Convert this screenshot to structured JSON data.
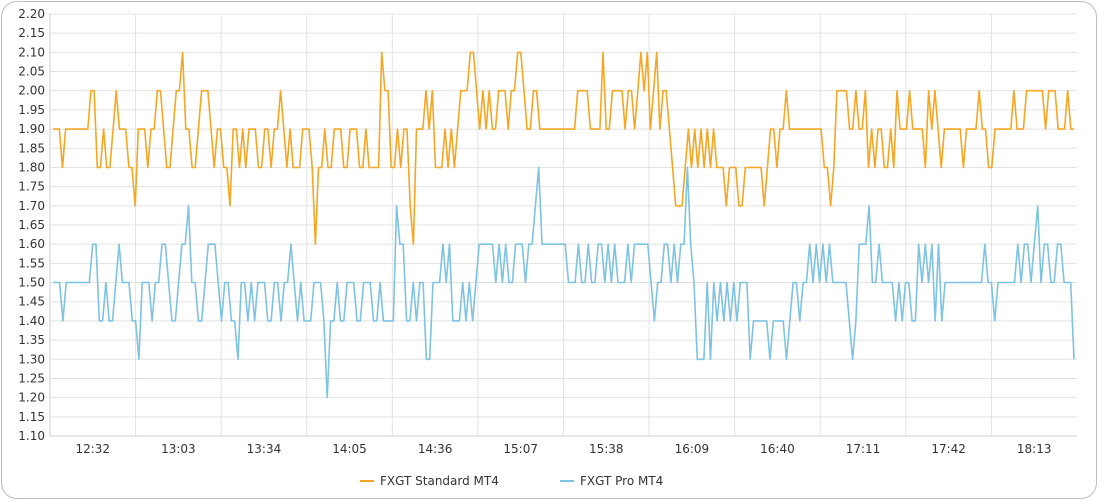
{
  "chart_data": {
    "type": "line",
    "title": "",
    "xlabel": "",
    "ylabel": "",
    "ylim": [
      1.1,
      2.2
    ],
    "y_ticks": [
      "2.20",
      "2.15",
      "2.10",
      "2.05",
      "2.00",
      "1.95",
      "1.90",
      "1.85",
      "1.80",
      "1.75",
      "1.70",
      "1.65",
      "1.60",
      "1.55",
      "1.50",
      "1.45",
      "1.40",
      "1.35",
      "1.30",
      "1.25",
      "1.20",
      "1.15",
      "1.10"
    ],
    "x_ticks": [
      "12:32",
      "13:03",
      "13:34",
      "14:05",
      "14:36",
      "15:07",
      "15:38",
      "16:09",
      "16:40",
      "17:11",
      "17:42",
      "18:13"
    ],
    "grid": true,
    "legend_position": "bottom",
    "series": [
      {
        "name": "FXGT Standard MT4",
        "color": "#f5a623",
        "values": [
          1.9,
          1.9,
          1.9,
          1.8,
          1.9,
          1.9,
          1.9,
          1.9,
          1.9,
          1.9,
          1.9,
          1.9,
          2.0,
          2.0,
          1.8,
          1.8,
          1.9,
          1.8,
          1.8,
          1.9,
          2.0,
          1.9,
          1.9,
          1.9,
          1.8,
          1.8,
          1.7,
          1.9,
          1.9,
          1.9,
          1.8,
          1.9,
          1.9,
          2.0,
          2.0,
          1.9,
          1.8,
          1.8,
          1.9,
          2.0,
          2.0,
          2.1,
          1.9,
          1.9,
          1.8,
          1.8,
          1.9,
          2.0,
          2.0,
          2.0,
          1.9,
          1.8,
          1.9,
          1.9,
          1.8,
          1.8,
          1.7,
          1.9,
          1.9,
          1.8,
          1.9,
          1.8,
          1.9,
          1.9,
          1.9,
          1.8,
          1.8,
          1.9,
          1.9,
          1.8,
          1.9,
          1.9,
          2.0,
          1.9,
          1.8,
          1.9,
          1.8,
          1.8,
          1.8,
          1.9,
          1.9,
          1.9,
          1.8,
          1.6,
          1.8,
          1.8,
          1.9,
          1.8,
          1.8,
          1.9,
          1.9,
          1.9,
          1.8,
          1.8,
          1.9,
          1.9,
          1.9,
          1.8,
          1.8,
          1.9,
          1.8,
          1.8,
          1.8,
          1.8,
          2.1,
          2.0,
          2.0,
          1.8,
          1.8,
          1.9,
          1.8,
          1.9,
          1.9,
          1.7,
          1.6,
          1.9,
          1.9,
          1.9,
          2.0,
          1.9,
          2.0,
          1.8,
          1.8,
          1.8,
          1.9,
          1.8,
          1.9,
          1.8,
          1.9,
          2.0,
          2.0,
          2.0,
          2.1,
          2.1,
          2.0,
          1.9,
          2.0,
          1.9,
          2.0,
          1.9,
          1.9,
          2.0,
          2.0,
          2.0,
          1.9,
          2.0,
          2.0,
          2.1,
          2.1,
          2.0,
          1.9,
          1.9,
          2.0,
          2.0,
          1.9,
          1.9,
          1.9,
          1.9,
          1.9,
          1.9,
          1.9,
          1.9,
          1.9,
          1.9,
          1.9,
          1.9,
          2.0,
          2.0,
          2.0,
          2.0,
          1.9,
          1.9,
          1.9,
          1.9,
          2.1,
          1.9,
          1.9,
          2.0,
          2.0,
          2.0,
          2.0,
          1.9,
          2.0,
          2.0,
          1.9,
          2.0,
          2.1,
          2.0,
          2.1,
          1.9,
          2.0,
          2.1,
          1.9,
          2.0,
          2.0,
          1.9,
          1.8,
          1.7,
          1.7,
          1.7,
          1.8,
          1.9,
          1.8,
          1.9,
          1.8,
          1.9,
          1.8,
          1.9,
          1.8,
          1.9,
          1.8,
          1.8,
          1.8,
          1.7,
          1.8,
          1.8,
          1.8,
          1.7,
          1.7,
          1.8,
          1.8,
          1.8,
          1.8,
          1.8,
          1.8,
          1.7,
          1.8,
          1.9,
          1.9,
          1.8,
          1.9,
          1.9,
          2.0,
          1.9,
          1.9,
          1.9,
          1.9,
          1.9,
          1.9,
          1.9,
          1.9,
          1.9,
          1.9,
          1.9,
          1.8,
          1.8,
          1.7,
          1.8,
          2.0,
          2.0,
          2.0,
          2.0,
          1.9,
          1.9,
          2.0,
          1.9,
          1.9,
          2.0,
          1.8,
          1.9,
          1.8,
          1.9,
          1.9,
          1.8,
          1.8,
          1.9,
          1.8,
          2.0,
          1.9,
          1.9,
          1.9,
          2.0,
          1.9,
          1.9,
          1.9,
          1.9,
          1.8,
          2.0,
          1.9,
          2.0,
          1.9,
          1.8,
          1.9,
          1.9,
          1.9,
          1.9,
          1.9,
          1.9,
          1.8,
          1.9,
          1.9,
          1.9,
          1.9,
          2.0,
          1.9,
          1.9,
          1.8,
          1.8,
          1.9,
          1.9,
          1.9,
          1.9,
          1.9,
          1.9,
          2.0,
          1.9,
          1.9,
          1.9,
          2.0,
          2.0,
          2.0,
          2.0,
          2.0,
          2.0,
          1.9,
          2.0,
          2.0,
          2.0,
          1.9,
          1.9,
          1.9,
          2.0,
          1.9,
          1.9
        ]
      },
      {
        "name": "FXGT Pro MT4",
        "color": "#7ec3e0",
        "values": [
          1.5,
          1.5,
          1.5,
          1.4,
          1.5,
          1.5,
          1.5,
          1.5,
          1.5,
          1.5,
          1.5,
          1.5,
          1.6,
          1.6,
          1.4,
          1.4,
          1.5,
          1.4,
          1.4,
          1.5,
          1.6,
          1.5,
          1.5,
          1.5,
          1.4,
          1.4,
          1.3,
          1.5,
          1.5,
          1.5,
          1.4,
          1.5,
          1.5,
          1.6,
          1.6,
          1.5,
          1.4,
          1.4,
          1.5,
          1.6,
          1.6,
          1.7,
          1.5,
          1.5,
          1.4,
          1.4,
          1.5,
          1.6,
          1.6,
          1.6,
          1.5,
          1.4,
          1.5,
          1.5,
          1.4,
          1.4,
          1.3,
          1.5,
          1.5,
          1.4,
          1.5,
          1.4,
          1.5,
          1.5,
          1.5,
          1.4,
          1.4,
          1.5,
          1.5,
          1.4,
          1.5,
          1.5,
          1.6,
          1.5,
          1.4,
          1.5,
          1.4,
          1.4,
          1.4,
          1.5,
          1.5,
          1.5,
          1.4,
          1.2,
          1.4,
          1.4,
          1.5,
          1.4,
          1.4,
          1.5,
          1.5,
          1.5,
          1.4,
          1.4,
          1.5,
          1.5,
          1.5,
          1.4,
          1.4,
          1.5,
          1.4,
          1.4,
          1.4,
          1.4,
          1.7,
          1.6,
          1.6,
          1.4,
          1.4,
          1.5,
          1.4,
          1.5,
          1.5,
          1.3,
          1.3,
          1.5,
          1.5,
          1.5,
          1.6,
          1.5,
          1.6,
          1.4,
          1.4,
          1.4,
          1.5,
          1.4,
          1.5,
          1.4,
          1.5,
          1.6,
          1.6,
          1.6,
          1.6,
          1.6,
          1.5,
          1.6,
          1.5,
          1.6,
          1.5,
          1.5,
          1.6,
          1.6,
          1.6,
          1.5,
          1.6,
          1.6,
          1.7,
          1.8,
          1.6,
          1.6,
          1.6,
          1.6,
          1.6,
          1.6,
          1.6,
          1.6,
          1.5,
          1.5,
          1.5,
          1.6,
          1.5,
          1.5,
          1.6,
          1.5,
          1.5,
          1.6,
          1.6,
          1.5,
          1.6,
          1.5,
          1.6,
          1.5,
          1.5,
          1.5,
          1.6,
          1.5,
          1.6,
          1.6,
          1.6,
          1.6,
          1.6,
          1.5,
          1.4,
          1.5,
          1.5,
          1.6,
          1.6,
          1.5,
          1.6,
          1.5,
          1.6,
          1.6,
          1.8,
          1.6,
          1.5,
          1.3,
          1.3,
          1.3,
          1.5,
          1.3,
          1.5,
          1.4,
          1.5,
          1.4,
          1.5,
          1.4,
          1.5,
          1.4,
          1.5,
          1.5,
          1.5,
          1.3,
          1.4,
          1.4,
          1.4,
          1.4,
          1.4,
          1.3,
          1.4,
          1.4,
          1.4,
          1.4,
          1.3,
          1.4,
          1.5,
          1.5,
          1.4,
          1.5,
          1.5,
          1.6,
          1.5,
          1.6,
          1.5,
          1.6,
          1.5,
          1.6,
          1.5,
          1.5,
          1.5,
          1.5,
          1.5,
          1.4,
          1.3,
          1.4,
          1.6,
          1.6,
          1.6,
          1.7,
          1.5,
          1.5,
          1.6,
          1.5,
          1.5,
          1.5,
          1.5,
          1.4,
          1.5,
          1.4,
          1.5,
          1.5,
          1.4,
          1.4,
          1.6,
          1.5,
          1.6,
          1.5,
          1.6,
          1.4,
          1.6,
          1.4,
          1.5,
          1.5,
          1.5,
          1.5,
          1.5,
          1.5,
          1.5,
          1.5,
          1.5,
          1.5,
          1.5,
          1.5,
          1.6,
          1.5,
          1.5,
          1.4,
          1.5,
          1.5,
          1.5,
          1.5,
          1.5,
          1.5,
          1.6,
          1.5,
          1.6,
          1.6,
          1.5,
          1.6,
          1.7,
          1.5,
          1.6,
          1.6,
          1.5,
          1.5,
          1.6,
          1.6,
          1.5,
          1.5,
          1.5,
          1.3
        ]
      }
    ]
  }
}
